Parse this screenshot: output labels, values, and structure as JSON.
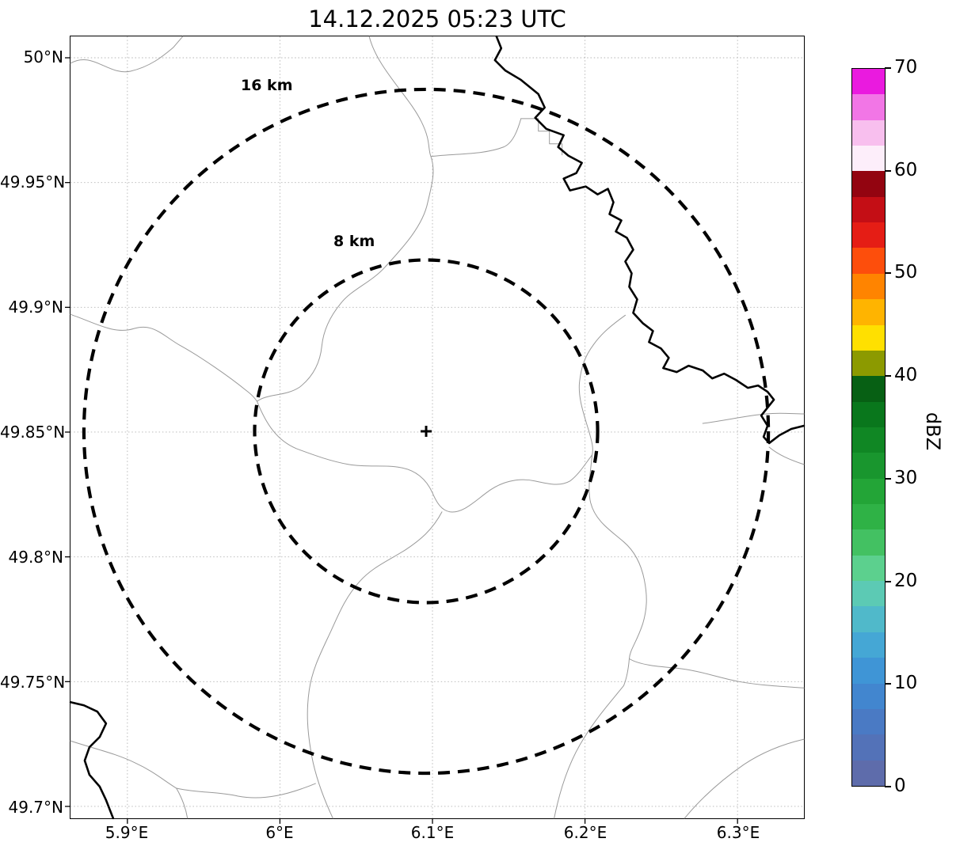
{
  "title": "14.12.2025 05:23 UTC",
  "map": {
    "x_tick_labels": [
      "5.9°E",
      "6°E",
      "6.1°E",
      "6.2°E",
      "6.3°E"
    ],
    "y_tick_labels": [
      "50°N",
      "49.95°N",
      "49.9°N",
      "49.85°N",
      "49.8°N",
      "49.75°N",
      "49.7°N"
    ],
    "range_rings": [
      {
        "label": "16 km"
      },
      {
        "label": "8 km"
      }
    ],
    "center_marker": "+"
  },
  "colorbar": {
    "label": "dBZ",
    "tick_labels": [
      "70",
      "60",
      "50",
      "40",
      "30",
      "20",
      "10",
      "0"
    ],
    "min": 0,
    "max": 70,
    "colors_bottom_to_top": [
      "#5e6cab",
      "#5372b8",
      "#4a7ac4",
      "#4286cf",
      "#3f95d6",
      "#45a7d5",
      "#50b9ca",
      "#5ccab4",
      "#5cd08e",
      "#43c162",
      "#2fb246",
      "#23a537",
      "#19962e",
      "#108724",
      "#09771c",
      "#076014",
      "#8c9a00",
      "#ffe000",
      "#ffb400",
      "#ff8400",
      "#fd4e0c",
      "#e51d15",
      "#c40e15",
      "#930410",
      "#fdeefa",
      "#f8bfee",
      "#f276e6",
      "#ea1adf"
    ]
  },
  "colors": {
    "grid": "#b3b3b3",
    "admin_boundary": "#9a9a9a",
    "national_border": "#000000",
    "range_ring": "#000000"
  }
}
